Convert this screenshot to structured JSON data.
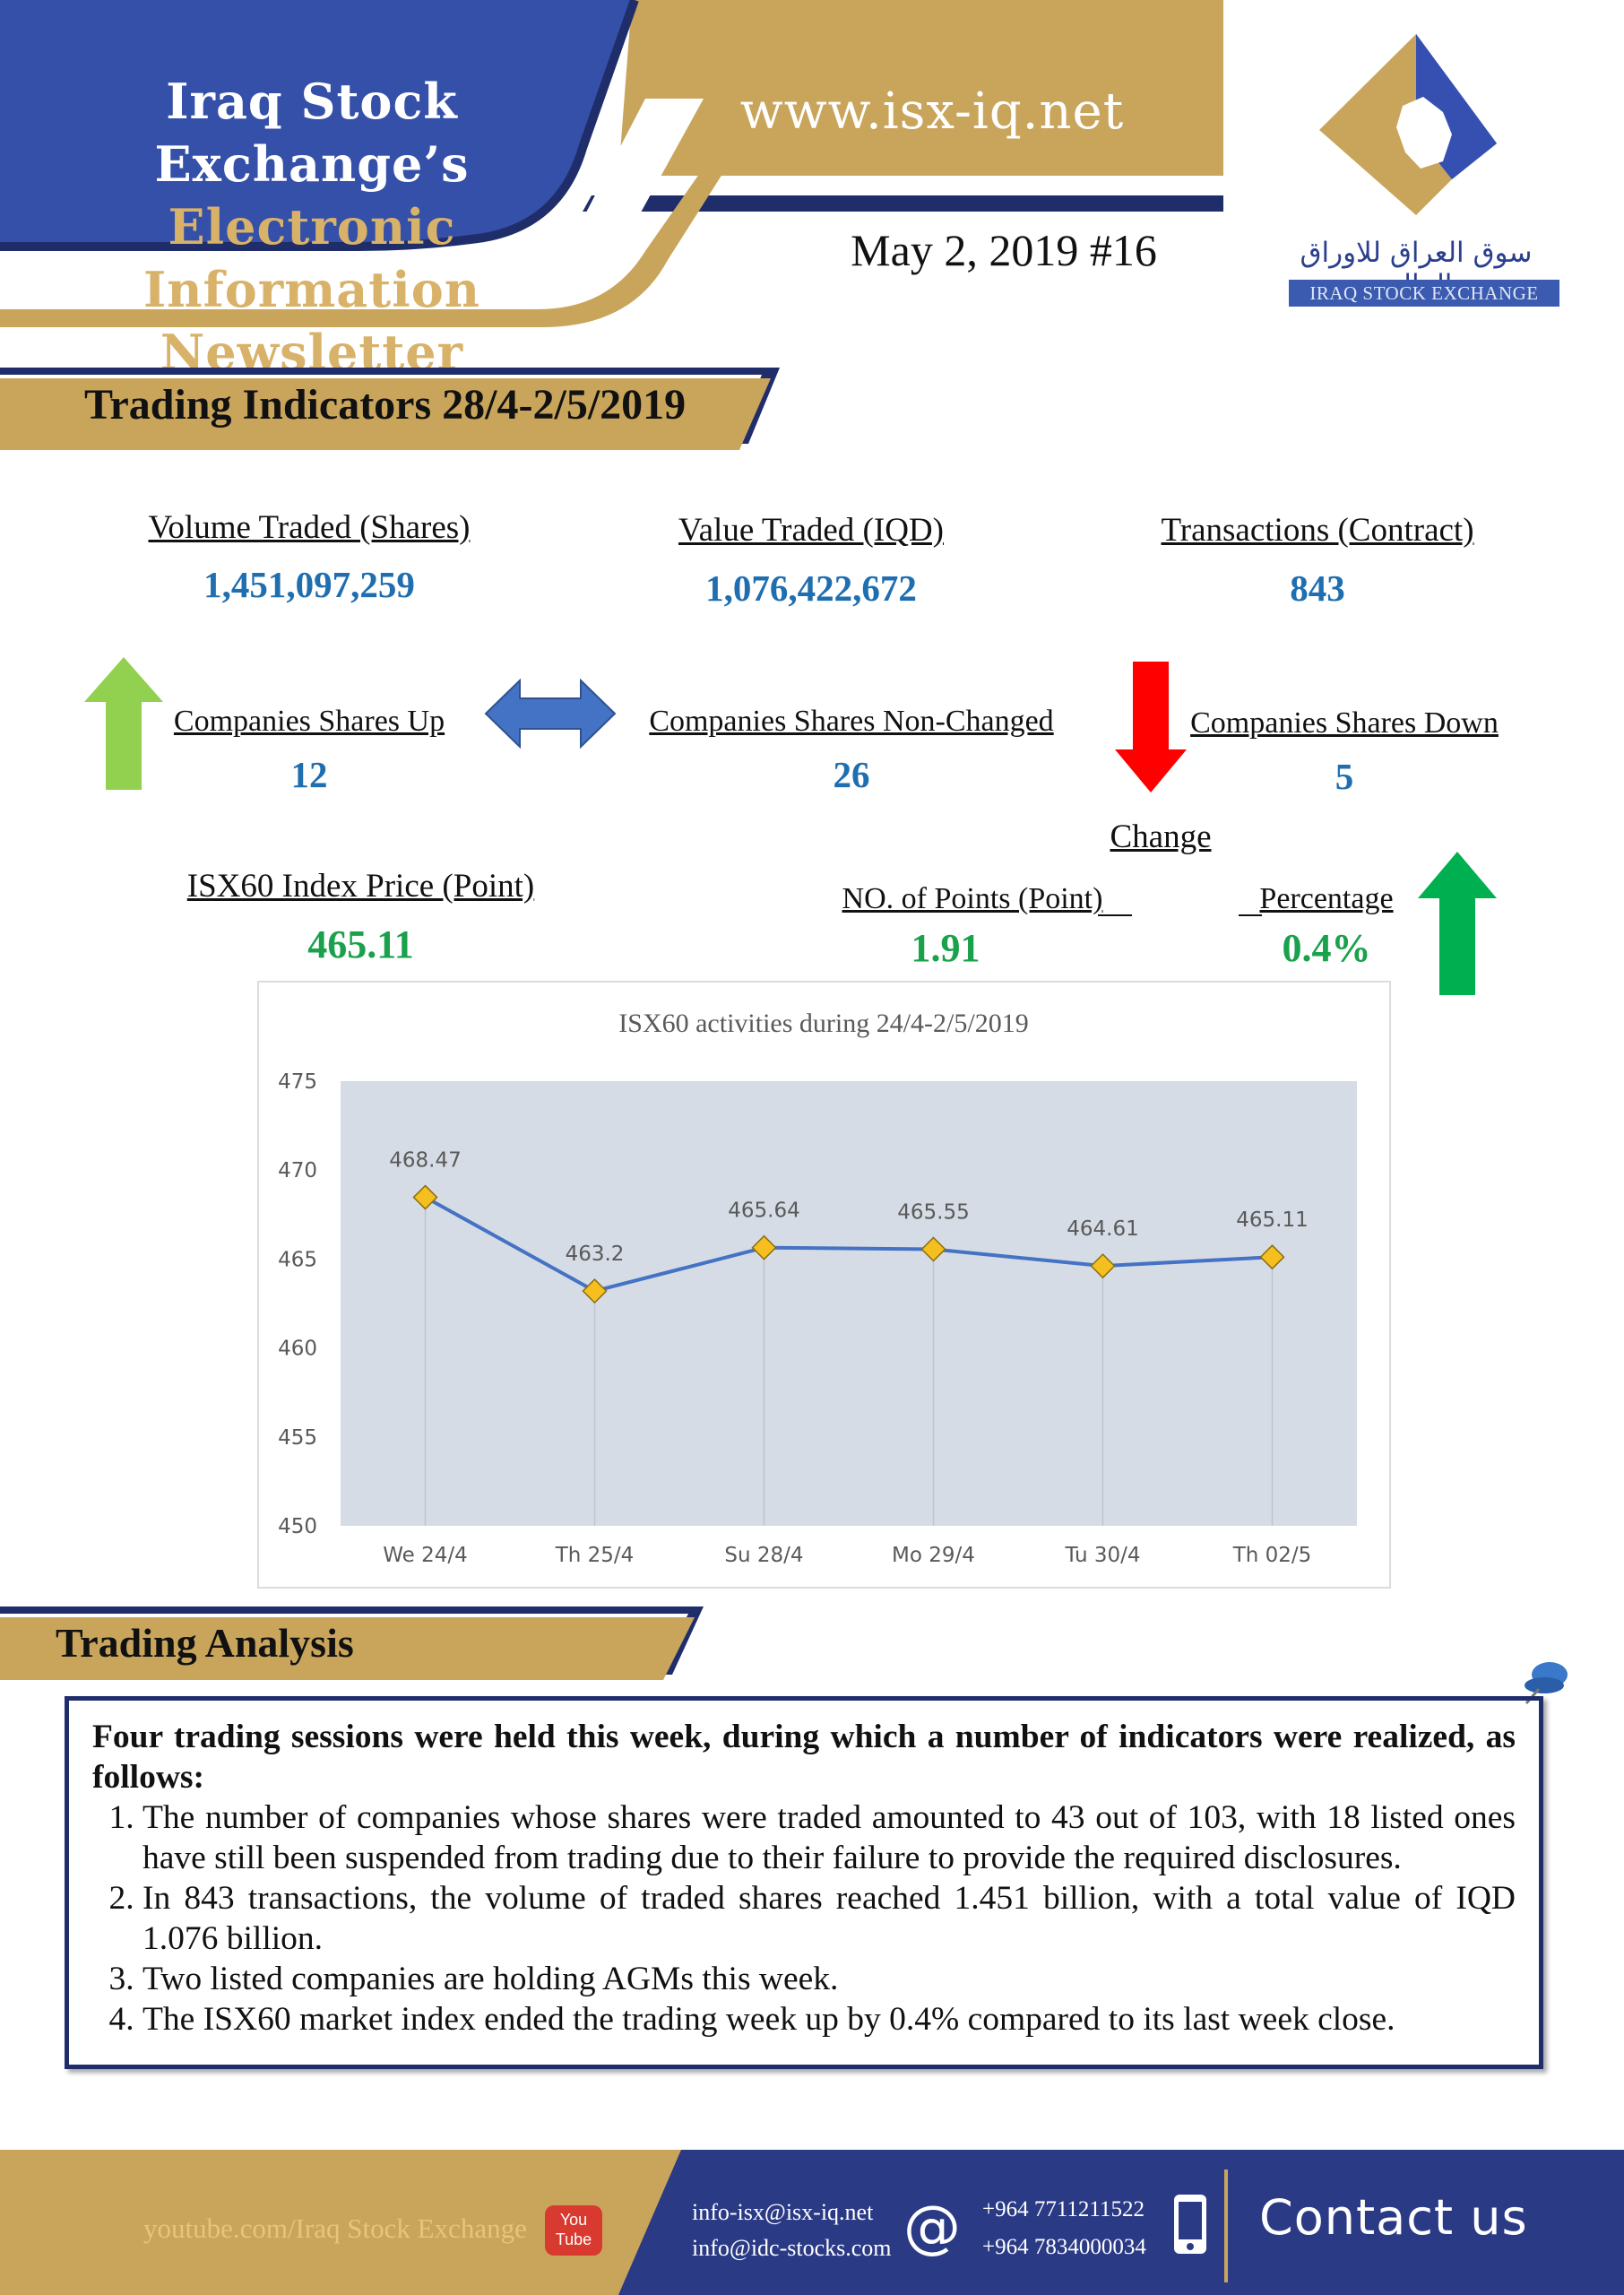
{
  "header": {
    "title_line1": "Iraq Stock Exchange’s",
    "title_line2": "Electronic Information",
    "title_line3": "Newsletter",
    "website": "www.isx-iq.net",
    "issue": "May 2, 2019 #16",
    "logo_arabic": "سوق العراق للاوراق المالية",
    "logo_english": "IRAQ STOCK EXCHANGE"
  },
  "trading_indicators": {
    "title": "Trading Indicators 28/4-2/5/2019",
    "volume_label": "Volume Traded (Shares)",
    "volume_value": "1,451,097,259",
    "value_label": "Value Traded (IQD)",
    "value_value": "1,076,422,672",
    "transactions_label": "Transactions (Contract)",
    "transactions_value": "843",
    "up_label": "Companies Shares Up",
    "up_value": "12",
    "nonchanged_label": "Companies Shares Non-Changed",
    "nonchanged_value": "26",
    "down_label": "Companies Shares Down",
    "down_value": "5",
    "change_label": "Change",
    "index_label": "ISX60 Index Price (Point)",
    "index_value": "465.11",
    "points_label": "NO. of Points (Point)",
    "points_value": "1.91",
    "percentage_label": "Percentage",
    "percentage_value": "0.4%"
  },
  "chart_data": {
    "type": "line",
    "title": "ISX60 activities during 24/4-2/5/2019",
    "categories": [
      "We 24/4",
      "Th 25/4",
      "Su 28/4",
      "Mo 29/4",
      "Tu 30/4",
      "Th 02/5"
    ],
    "values": [
      468.47,
      463.2,
      465.64,
      465.55,
      464.61,
      465.11
    ],
    "data_labels": [
      "468.47",
      "463.2",
      "465.64",
      "465.55",
      "464.61",
      "465.11"
    ],
    "ylim": [
      450,
      475
    ],
    "yticks": [
      "450",
      "455",
      "460",
      "465",
      "470",
      "475"
    ],
    "colors": {
      "line": "#4472c4",
      "marker": "#f5c01f",
      "plot_bg": "#d6dce5"
    }
  },
  "analysis": {
    "title": "Trading Analysis",
    "lead": "Four trading sessions were held this week, during which a number of indicators were realized, as follows:",
    "items": [
      "The number of companies whose shares were traded amounted to 43 out of 103, with 18 listed ones have still been suspended from trading due to their failure to provide the required disclosures.",
      "In 843 transactions, the volume of traded shares reached 1.451 billion, with a total value of IQD 1.076 billion.",
      "Two listed companies are holding AGMs this week.",
      "The ISX60 market index ended the trading week up by 0.4% compared to its last week close."
    ]
  },
  "footer": {
    "youtube": "youtube.com/Iraq Stock Exchange",
    "youtube_badge_line1": "You",
    "youtube_badge_line2": "Tube",
    "email1": "info-isx@isx-iq.net",
    "email2": "info@idc-stocks.com",
    "at_symbol": "@",
    "phone1": "+964 7711211522",
    "phone2": "+964 7834000034",
    "contact": "Contact us"
  },
  "icons": [
    "arrow-up-icon",
    "double-arrow-icon",
    "arrow-down-icon",
    "pushpin-icon",
    "youtube-icon",
    "at-icon",
    "phone-icon"
  ]
}
